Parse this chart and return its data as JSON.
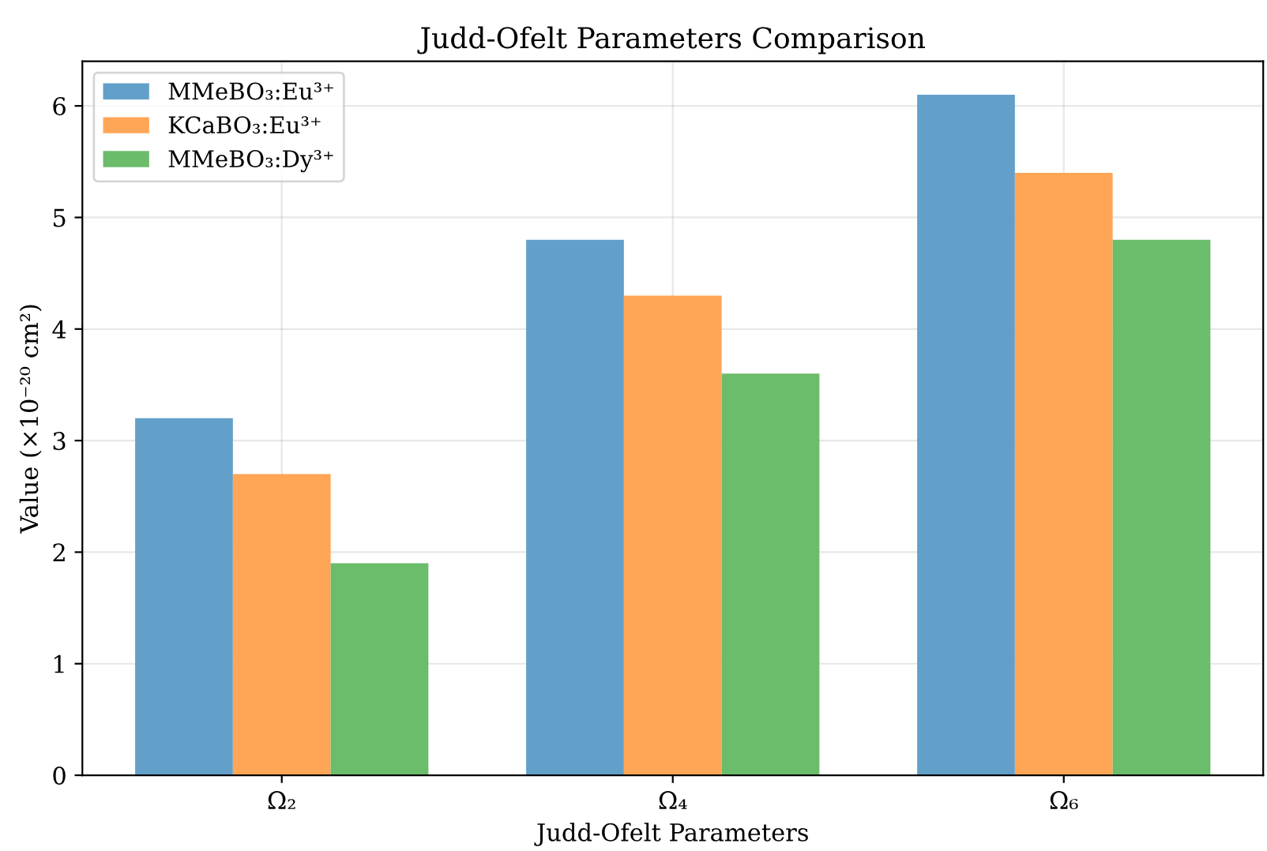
{
  "chart_data": {
    "type": "bar",
    "title": "Judd-Ofelt Parameters Comparison",
    "xlabel": "Judd-Ofelt Parameters",
    "ylabel": "Value (×10⁻²⁰ cm²)",
    "categories": [
      "Ω₂",
      "Ω₄",
      "Ω₆"
    ],
    "series": [
      {
        "name": "MMeBO₃:Eu³⁺",
        "color": "#62a0ca",
        "values": [
          3.2,
          4.8,
          6.1
        ]
      },
      {
        "name": "KCaBO₃:Eu³⁺",
        "color": "#ffa556",
        "values": [
          2.7,
          4.3,
          5.4
        ]
      },
      {
        "name": "MMeBO₃:Dy³⁺",
        "color": "#6bbc6b",
        "values": [
          1.9,
          3.6,
          4.8
        ]
      }
    ],
    "ylim": [
      0,
      6.4
    ],
    "yticks": [
      0,
      1,
      2,
      3,
      4,
      5,
      6
    ],
    "grid": true,
    "legend": "top left"
  }
}
